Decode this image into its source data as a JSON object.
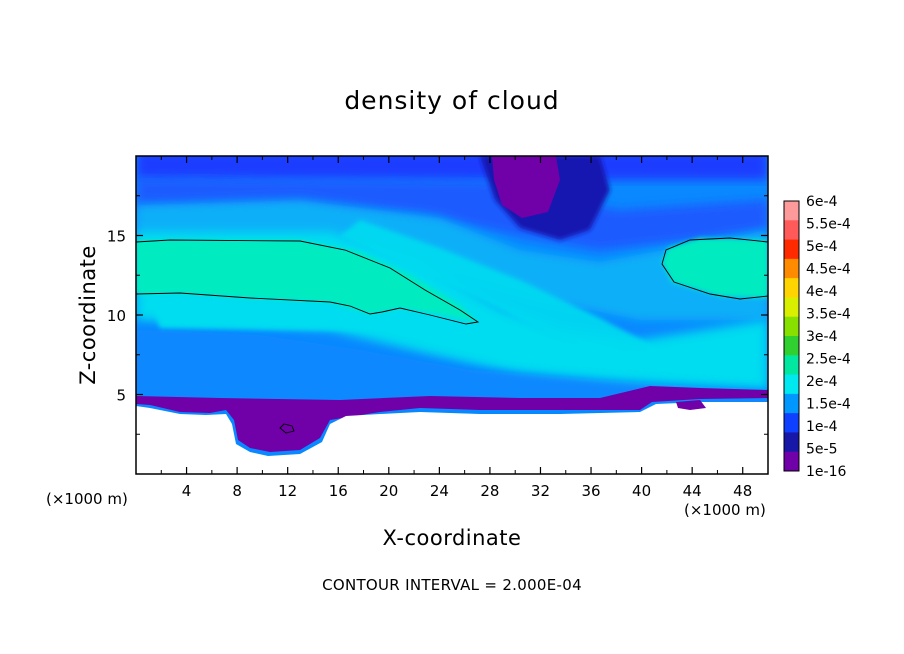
{
  "chart_data": {
    "type": "heatmap",
    "title": "density of cloud",
    "xlabel": "X-coordinate",
    "ylabel": "Z-coordinate",
    "x_unit": "(×1000 m)",
    "z_unit": "(×1000 m)",
    "xlim": [
      0,
      50
    ],
    "ylim": [
      0,
      20
    ],
    "x_ticks": [
      4,
      8,
      12,
      16,
      20,
      24,
      28,
      32,
      36,
      40,
      44,
      48
    ],
    "y_ticks": [
      5,
      10,
      15
    ],
    "contour_interval_text": "CONTOUR INTERVAL = 2.000E-04",
    "colorbar": {
      "labels": [
        "6e-4",
        "5.5e-4",
        "5e-4",
        "4.5e-4",
        "4e-4",
        "3.5e-4",
        "3e-4",
        "2.5e-4",
        "2e-4",
        "1.5e-4",
        "1e-4",
        "5e-5",
        "1e-16"
      ],
      "colors": [
        "#ff9a9a",
        "#ff5a5a",
        "#ff2a00",
        "#ff8c00",
        "#ffd400",
        "#d8f000",
        "#88e000",
        "#30d030",
        "#00e8a0",
        "#00e8f0",
        "#0098ff",
        "#1040ff",
        "#1818a8",
        "#7000a8"
      ]
    },
    "colors": {
      "purple": "#7000a8",
      "navy": "#1818b0",
      "blue": "#1f3cff",
      "blue2": "#1a5cff",
      "azure": "#0a88ff",
      "sky": "#08b0f8",
      "cyan": "#00dcf0",
      "teal": "#00e8b8",
      "green": "#00ecc0"
    }
  }
}
